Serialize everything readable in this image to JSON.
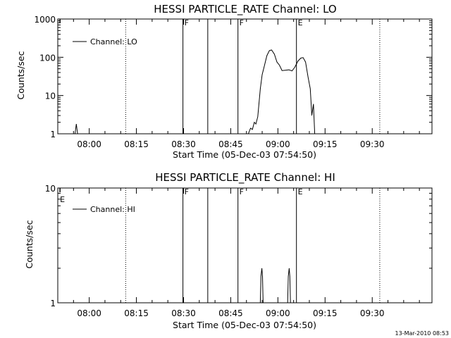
{
  "footer": {
    "timestamp": "13-Mar-2010 08:53"
  },
  "chart_data": [
    {
      "type": "line",
      "title": "HESSI PARTICLE_RATE Channel: LO",
      "xlabel": "Start Time (05-Dec-03 07:54:50)",
      "ylabel": "Counts/sec",
      "y_scale": "log",
      "xlim_min": [
        -5,
        114
      ],
      "ylim": [
        1,
        1000
      ],
      "x_ticks": [
        5,
        20,
        35,
        50,
        65,
        80,
        95
      ],
      "x_tick_labels": [
        "08:00",
        "08:15",
        "08:30",
        "08:45",
        "09:00",
        "09:15",
        "09:30"
      ],
      "y_ticks": [
        1,
        10,
        100,
        1000
      ],
      "y_tick_labels": [
        "1",
        "10",
        "100",
        "1000"
      ],
      "legend": {
        "position": "top-left",
        "entries": [
          "Channel: LO"
        ]
      },
      "series": [
        {
          "name": "Channel: LO",
          "points": [
            [
              0.5,
              1
            ],
            [
              0.9,
              1.8
            ],
            [
              1.3,
              1
            ],
            [
              55.6,
              1
            ],
            [
              56.3,
              1.4
            ],
            [
              56.9,
              1.3
            ],
            [
              57.5,
              2
            ],
            [
              58,
              1.8
            ],
            [
              58.6,
              2.8
            ],
            [
              59.4,
              15
            ],
            [
              60,
              35
            ],
            [
              60.7,
              60
            ],
            [
              61.5,
              110
            ],
            [
              62.3,
              150
            ],
            [
              63,
              155
            ],
            [
              63.9,
              120
            ],
            [
              64.7,
              75
            ],
            [
              65.5,
              62
            ],
            [
              66.3,
              45
            ],
            [
              67.4,
              46
            ],
            [
              68.5,
              47
            ],
            [
              69.5,
              44
            ],
            [
              70.4,
              55
            ],
            [
              71.4,
              80
            ],
            [
              72.3,
              95
            ],
            [
              73,
              98
            ],
            [
              73.8,
              75
            ],
            [
              74.6,
              30
            ],
            [
              75.3,
              15
            ],
            [
              75.8,
              3
            ],
            [
              76.3,
              6
            ],
            [
              76.7,
              1
            ]
          ]
        }
      ],
      "event_markers": [
        {
          "x": 34.8,
          "style": "solid",
          "label": "F"
        },
        {
          "x": 42.7,
          "style": "solid",
          "label": ""
        },
        {
          "x": 52.3,
          "style": "solid",
          "label": "F"
        },
        {
          "x": 70.9,
          "style": "solid",
          "label": "E"
        },
        {
          "x": 16.6,
          "style": "dotted",
          "label": ""
        },
        {
          "x": 97.4,
          "style": "dotted",
          "label": ""
        }
      ],
      "corner_marks": [
        {
          "x": -4.3,
          "label": ""
        }
      ]
    },
    {
      "type": "line",
      "title": "HESSI PARTICLE_RATE Channel: HI",
      "xlabel": "Start Time (05-Dec-03 07:54:50)",
      "ylabel": "Counts/sec",
      "y_scale": "log",
      "xlim_min": [
        -5,
        114
      ],
      "ylim": [
        1,
        10
      ],
      "x_ticks": [
        5,
        20,
        35,
        50,
        65,
        80,
        95
      ],
      "x_tick_labels": [
        "08:00",
        "08:15",
        "08:30",
        "08:45",
        "09:00",
        "09:15",
        "09:30"
      ],
      "y_ticks": [
        1,
        10
      ],
      "y_tick_labels": [
        "1",
        "10"
      ],
      "legend": {
        "position": "top-left",
        "entries": [
          "Channel: HI"
        ]
      },
      "series": [
        {
          "name": "Channel: HI",
          "points": [
            [
              59.4,
              1
            ],
            [
              59.6,
              1.7
            ],
            [
              59.9,
              2
            ],
            [
              60.1,
              1.7
            ],
            [
              60.3,
              1
            ],
            [
              68.1,
              1
            ],
            [
              68.3,
              1.7
            ],
            [
              68.6,
              2
            ],
            [
              68.8,
              1.7
            ],
            [
              69,
              1
            ]
          ]
        }
      ],
      "event_markers": [
        {
          "x": 34.8,
          "style": "solid",
          "label": "F"
        },
        {
          "x": 42.7,
          "style": "solid",
          "label": ""
        },
        {
          "x": 52.3,
          "style": "solid",
          "label": "F"
        },
        {
          "x": 70.9,
          "style": "solid",
          "label": "E"
        },
        {
          "x": 16.6,
          "style": "dotted",
          "label": ""
        },
        {
          "x": 97.4,
          "style": "dotted",
          "label": ""
        }
      ],
      "corner_marks": [
        {
          "x": -4.3,
          "label": "E"
        }
      ]
    }
  ]
}
